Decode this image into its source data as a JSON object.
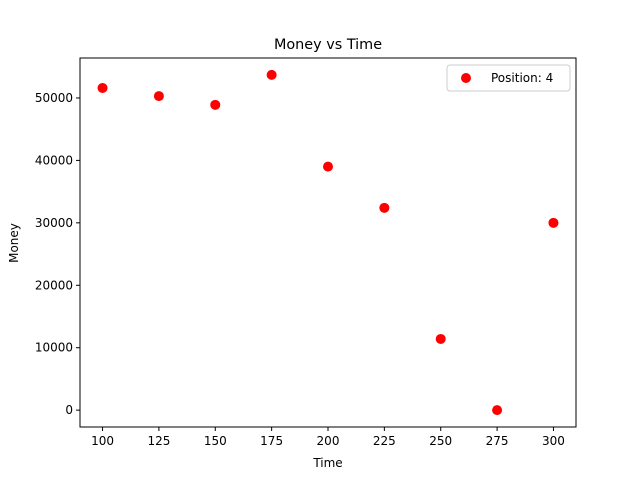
{
  "chart_data": {
    "type": "scatter",
    "title": "Money vs Time",
    "xlabel": "Time",
    "ylabel": "Money",
    "xlim": [
      90.0,
      310.0
    ],
    "ylim": [
      -2700,
      56400
    ],
    "xticks": [
      100,
      125,
      150,
      175,
      200,
      225,
      250,
      275,
      300
    ],
    "xtick_labels": [
      "100",
      "125",
      "150",
      "175",
      "200",
      "225",
      "250",
      "275",
      "300"
    ],
    "yticks": [
      0,
      10000,
      20000,
      30000,
      40000,
      50000
    ],
    "ytick_labels": [
      "0",
      "10000",
      "20000",
      "30000",
      "40000",
      "50000"
    ],
    "grid": false,
    "legend_position": "upper right",
    "series": [
      {
        "name": "Position: 4",
        "color": "#ff0000",
        "x": [
          100,
          125,
          150,
          175,
          200,
          225,
          250,
          275,
          300
        ],
        "y": [
          51600,
          50300,
          48900,
          53700,
          39000,
          32400,
          11400,
          0,
          30000
        ]
      }
    ]
  }
}
